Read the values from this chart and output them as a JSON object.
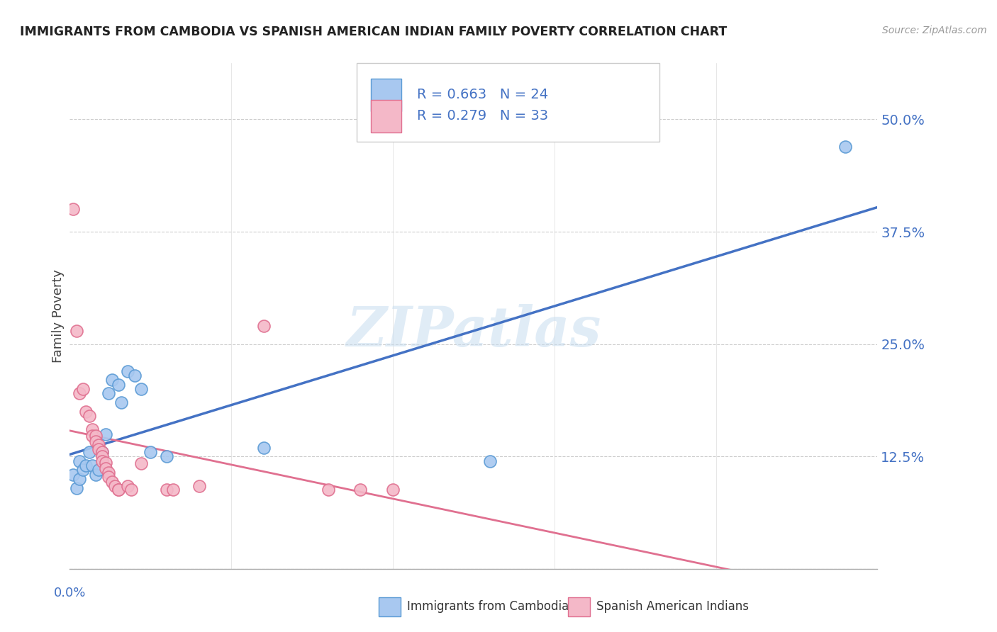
{
  "title": "IMMIGRANTS FROM CAMBODIA VS SPANISH AMERICAN INDIAN FAMILY POVERTY CORRELATION CHART",
  "source": "Source: ZipAtlas.com",
  "xlabel_label": "Immigrants from Cambodia",
  "xlabel2_label": "Spanish American Indians",
  "ylabel": "Family Poverty",
  "xmin": 0.0,
  "xmax": 0.25,
  "ymin": 0.0,
  "ymax": 0.5625,
  "yticks": [
    0.0,
    0.125,
    0.25,
    0.375,
    0.5
  ],
  "ytick_labels": [
    "",
    "12.5%",
    "25.0%",
    "37.5%",
    "50.0%"
  ],
  "xticks": [
    0.0,
    0.05,
    0.1,
    0.15,
    0.2,
    0.25
  ],
  "blue_R": 0.663,
  "blue_N": 24,
  "pink_R": 0.279,
  "pink_N": 33,
  "blue_fill": "#a8c8f0",
  "pink_fill": "#f4b8c8",
  "blue_edge": "#5b9bd5",
  "pink_edge": "#e07090",
  "blue_line": "#4472c4",
  "pink_line": "#e07090",
  "watermark": "ZIPatlas",
  "blue_dots": [
    [
      0.001,
      0.105
    ],
    [
      0.002,
      0.09
    ],
    [
      0.003,
      0.1
    ],
    [
      0.003,
      0.12
    ],
    [
      0.004,
      0.11
    ],
    [
      0.005,
      0.115
    ],
    [
      0.006,
      0.13
    ],
    [
      0.007,
      0.115
    ],
    [
      0.008,
      0.105
    ],
    [
      0.009,
      0.11
    ],
    [
      0.01,
      0.13
    ],
    [
      0.011,
      0.15
    ],
    [
      0.012,
      0.195
    ],
    [
      0.013,
      0.21
    ],
    [
      0.015,
      0.205
    ],
    [
      0.016,
      0.185
    ],
    [
      0.018,
      0.22
    ],
    [
      0.02,
      0.215
    ],
    [
      0.022,
      0.2
    ],
    [
      0.025,
      0.13
    ],
    [
      0.03,
      0.125
    ],
    [
      0.06,
      0.135
    ],
    [
      0.13,
      0.12
    ],
    [
      0.24,
      0.47
    ]
  ],
  "pink_dots": [
    [
      0.001,
      0.4
    ],
    [
      0.002,
      0.265
    ],
    [
      0.003,
      0.195
    ],
    [
      0.004,
      0.2
    ],
    [
      0.005,
      0.175
    ],
    [
      0.006,
      0.17
    ],
    [
      0.007,
      0.155
    ],
    [
      0.007,
      0.148
    ],
    [
      0.008,
      0.148
    ],
    [
      0.008,
      0.142
    ],
    [
      0.009,
      0.138
    ],
    [
      0.009,
      0.133
    ],
    [
      0.01,
      0.13
    ],
    [
      0.01,
      0.125
    ],
    [
      0.01,
      0.12
    ],
    [
      0.011,
      0.118
    ],
    [
      0.011,
      0.112
    ],
    [
      0.012,
      0.107
    ],
    [
      0.012,
      0.102
    ],
    [
      0.013,
      0.097
    ],
    [
      0.014,
      0.092
    ],
    [
      0.015,
      0.088
    ],
    [
      0.015,
      0.088
    ],
    [
      0.018,
      0.092
    ],
    [
      0.019,
      0.088
    ],
    [
      0.022,
      0.117
    ],
    [
      0.03,
      0.088
    ],
    [
      0.032,
      0.088
    ],
    [
      0.04,
      0.092
    ],
    [
      0.06,
      0.27
    ],
    [
      0.08,
      0.088
    ],
    [
      0.09,
      0.088
    ],
    [
      0.1,
      0.088
    ]
  ]
}
